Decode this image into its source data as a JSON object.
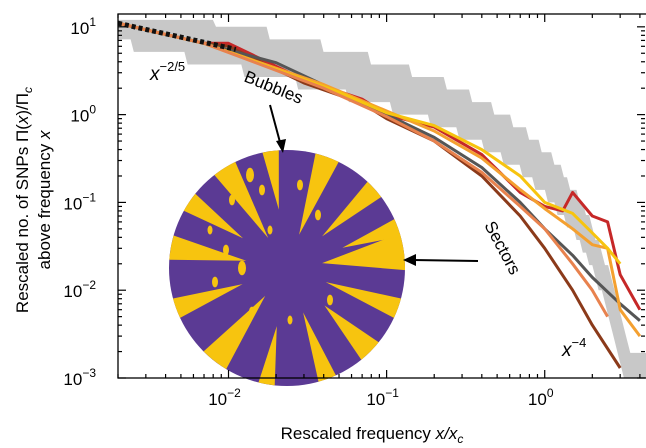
{
  "chart_data": {
    "type": "line",
    "title": "",
    "xlabel_main": "Rescaled frequency ",
    "xlabel_var": "x/x",
    "xlabel_sub": "c",
    "ylabel_line1_main": "Rescaled no. of SNPs Π(",
    "ylabel_line1_var": "x",
    "ylabel_line1_tail": ")/Π",
    "ylabel_line1_sub": "c",
    "ylabel_line2_main": "above frequency ",
    "ylabel_line2_var": "x",
    "x_scale": "log",
    "y_scale": "log",
    "xlim": [
      0.002,
      4.5
    ],
    "ylim": [
      0.001,
      14
    ],
    "x_ticks": [
      {
        "value": 0.01,
        "base": "10",
        "exp": "−2"
      },
      {
        "value": 0.1,
        "base": "10",
        "exp": "−1"
      },
      {
        "value": 1,
        "base": "10",
        "exp": "0"
      }
    ],
    "y_ticks": [
      {
        "value": 10,
        "base": "10",
        "exp": "1"
      },
      {
        "value": 1,
        "base": "10",
        "exp": "0"
      },
      {
        "value": 0.1,
        "base": "10",
        "exp": "−1"
      },
      {
        "value": 0.01,
        "base": "10",
        "exp": "−2"
      },
      {
        "value": 0.001,
        "base": "10",
        "exp": "−3"
      }
    ],
    "annotations": {
      "low_slope_base": "x",
      "low_slope_exp": "−2/5",
      "high_slope_base": "x",
      "high_slope_exp": "−4",
      "bubbles": "Bubbles",
      "sectors": "Sectors"
    },
    "colony_colors": {
      "background": "#5b3a94",
      "mutant": "#f7c40f"
    },
    "envelope_color": "#c8c8c8",
    "series": [
      {
        "color": "#c62828",
        "x": [
          0.01,
          0.03,
          0.07,
          0.1,
          0.2,
          0.4,
          0.7,
          1.0,
          1.3,
          1.5,
          2.0,
          2.5,
          3.0,
          4.0
        ],
        "y": [
          6.5,
          2.5,
          1.5,
          1.0,
          0.72,
          0.35,
          0.13,
          0.09,
          0.08,
          0.13,
          0.07,
          0.06,
          0.015,
          0.006
        ]
      },
      {
        "color": "#8b3a1a",
        "x": [
          0.01,
          0.03,
          0.07,
          0.1,
          0.2,
          0.4,
          0.7,
          1.0,
          1.5,
          2.0,
          3.0
        ],
        "y": [
          6.0,
          2.3,
          1.35,
          0.9,
          0.5,
          0.2,
          0.07,
          0.03,
          0.01,
          0.004,
          0.0013
        ]
      },
      {
        "color": "#555555",
        "x": [
          0.02,
          0.05,
          0.1,
          0.2,
          0.4,
          0.7,
          1.0,
          1.5,
          2.0,
          3.0,
          4.0
        ],
        "y": [
          3.9,
          1.8,
          1.0,
          0.55,
          0.25,
          0.1,
          0.05,
          0.025,
          0.014,
          0.007,
          0.0045
        ]
      },
      {
        "color": "#f4a030",
        "x": [
          0.04,
          0.1,
          0.2,
          0.4,
          0.7,
          1.0,
          1.5,
          2.0,
          2.5,
          3.0,
          4.0
        ],
        "y": [
          2.2,
          1.1,
          0.65,
          0.32,
          0.14,
          0.085,
          0.05,
          0.033,
          0.03,
          0.006,
          0.003
        ]
      },
      {
        "color": "#f7c40f",
        "x": [
          0.05,
          0.1,
          0.2,
          0.4,
          0.7,
          1.0,
          1.5,
          2.0,
          2.5,
          3.0
        ],
        "y": [
          1.8,
          1.05,
          0.75,
          0.4,
          0.2,
          0.1,
          0.075,
          0.045,
          0.03,
          0.02
        ]
      },
      {
        "color": "#e8824e",
        "x": [
          0.04,
          0.1,
          0.2,
          0.4,
          0.7,
          1.0,
          1.5,
          2.0,
          2.5
        ],
        "y": [
          2.0,
          0.95,
          0.5,
          0.22,
          0.09,
          0.05,
          0.02,
          0.01,
          0.005
        ]
      }
    ]
  }
}
